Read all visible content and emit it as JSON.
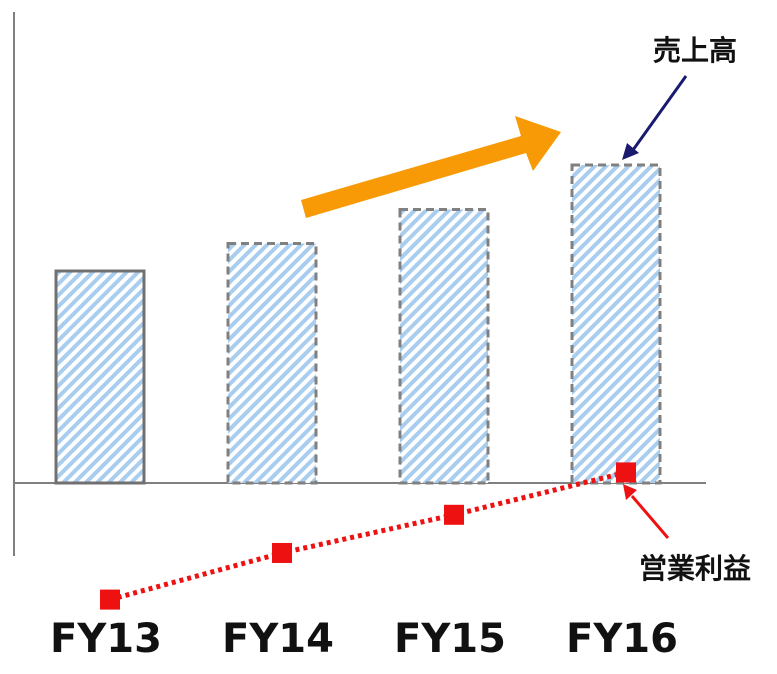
{
  "chart_data": {
    "type": "bar",
    "categories": [
      "FY13",
      "FY14",
      "FY15",
      "FY16"
    ],
    "series": [
      {
        "name": "売上高",
        "type": "bar",
        "values": [
          100,
          113,
          129,
          150
        ],
        "styles": [
          "solid",
          "dashed",
          "dashed",
          "dashed"
        ]
      },
      {
        "name": "営業利益",
        "type": "line",
        "values": [
          -55,
          -33,
          -15,
          5
        ]
      }
    ],
    "annotations": {
      "sales_label": "売上高",
      "profit_label": "営業利益"
    },
    "ylim": [
      -70,
      215
    ],
    "colors": {
      "bar_stripe": "#a8cdee",
      "bar_outline_solid": "#707070",
      "bar_outline_dashed": "#808080",
      "profit": "#ee1111",
      "trend_arrow": "#f79a05",
      "sales_pointer": "#1a1a6e",
      "profit_pointer": "#ee1111",
      "axis": "#808080"
    }
  }
}
